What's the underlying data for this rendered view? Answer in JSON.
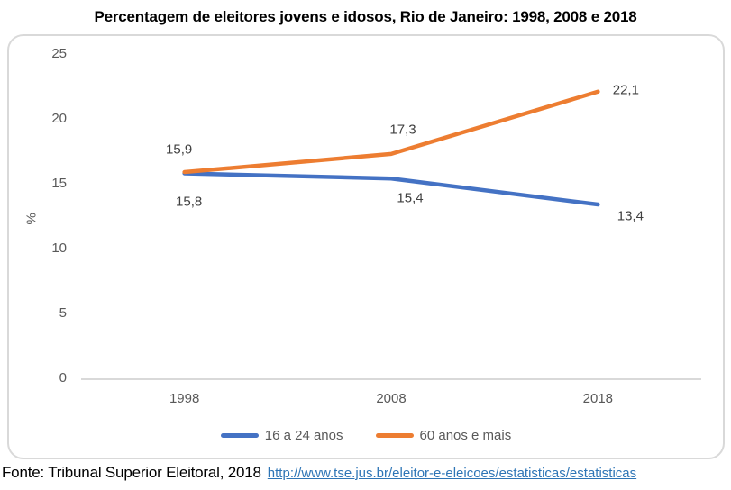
{
  "title": "Percentagem de eleitores jovens e idosos, Rio de Janeiro: 1998, 2008 e 2018",
  "chart_data": {
    "type": "line",
    "title": "Percentagem de eleitores jovens e idosos, Rio de Janeiro: 1998, 2008 e 2018",
    "categories": [
      "1998",
      "2008",
      "2018"
    ],
    "series": [
      {
        "name": "16 a 24 anos",
        "values": [
          15.8,
          15.4,
          13.4
        ],
        "point_labels": [
          "15,8",
          "15,4",
          "13,4"
        ],
        "color": "#4472C4"
      },
      {
        "name": "60 anos e mais",
        "values": [
          15.9,
          17.3,
          22.1
        ],
        "point_labels": [
          "15,9",
          "17,3",
          "22,1"
        ],
        "color": "#ED7D31"
      }
    ],
    "xlabel": "",
    "ylabel": "%",
    "ylim": [
      0,
      25
    ],
    "yticks": [
      0,
      5,
      10,
      15,
      20,
      25
    ],
    "grid": false,
    "legend_position": "bottom"
  },
  "footer": {
    "source_text": "Fonte: Tribunal Superior Eleitoral, 2018",
    "link_text": "http://www.tse.jus.br/eleitor-e-eleicoes/estatisticas/estatisticas"
  },
  "colors": {
    "series_blue": "#4472C4",
    "series_orange": "#ED7D31",
    "axis_line": "#D9D9D9",
    "frame_border": "#D9D9D9",
    "tick_text": "#595959",
    "data_label_text": "#404040",
    "link": "#2E75B6",
    "title_text": "#000000"
  }
}
